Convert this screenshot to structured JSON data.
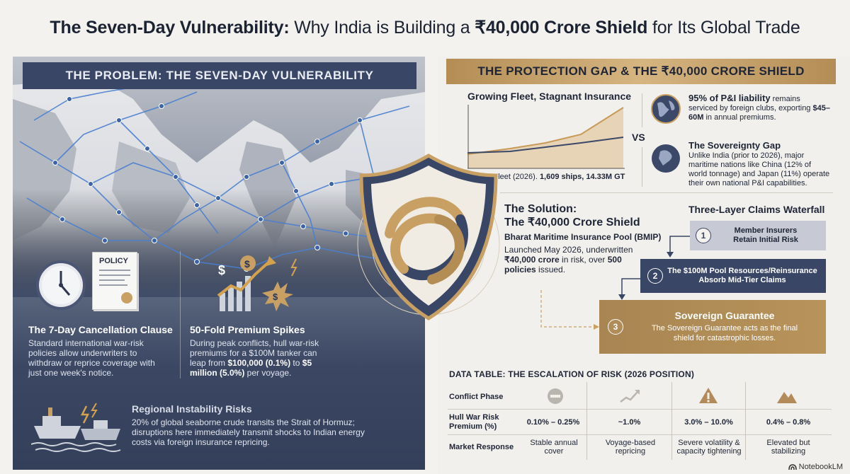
{
  "title": {
    "part1": "The Seven-Day Vulnerability:",
    "part2": " Why India is Building a ",
    "part3": "₹40,000 Crore Shield",
    "part4": " for Its Global Trade"
  },
  "left": {
    "banner": "THE PROBLEM: THE SEVEN-DAY VULNERABILITY",
    "policy_label": "POLICY",
    "clause": {
      "title": "The 7-Day Cancellation Clause",
      "text": "Standard international war-risk policies allow underwriters to withdraw or reprice coverage with just one week's notice."
    },
    "spikes": {
      "title": "50-Fold Premium Spikes",
      "text_a": "During peak conflicts, hull war-risk premiums for a $100M tanker can leap from ",
      "text_b": "$100,000 (0.1%)",
      "text_c": " to ",
      "text_d": "$5 million (5.0%)",
      "text_e": " per voyage."
    },
    "regional": {
      "title": "Regional Instability Risks",
      "text": "20% of global seaborne crude transits the Strait of Hormuz; disruptions here immediately transmit shocks to Indian energy costs via foreign insurance repricing."
    }
  },
  "right": {
    "banner": "THE PROTECTION GAP & THE ₹40,000 CRORE SHIELD",
    "fleet_title": "Growing Fleet, Stagnant Insurance",
    "fleet_caption_a": "India's Fleet (2026). ",
    "fleet_caption_b": "1,609 ships, 14.33M GT",
    "vs": "VS",
    "pi": {
      "bold": "95% of P&I liability",
      "text_a": " remains serviced by foreign clubs, exporting ",
      "text_b": "$45–60M",
      "text_c": " in annual premiums."
    },
    "sovereignty": {
      "title": "The Sovereignty Gap",
      "text": "Unlike India (prior to 2026), major maritime nations like China (12% of world tonnage) and Japan (11%) operate their own national P&I capabilities."
    },
    "solution": {
      "title1": "The Solution:",
      "title2": "The ₹40,000 Crore Shield",
      "subtitle": "Bharat Maritime Insurance Pool (BMIP)",
      "text_a": "Launched May 2026, underwritten ",
      "text_b": "₹40,000 crore",
      "text_c": " in risk, over ",
      "text_d": "500 policies",
      "text_e": " issued."
    },
    "waterfall": {
      "title": "Three-Layer Claims Waterfall",
      "steps": [
        {
          "num": "1",
          "line1": "Member Insurers",
          "line2": "Retain Initial Risk"
        },
        {
          "num": "2",
          "line1": "The $100M Pool Resources/Reinsurance",
          "line2": "Absorb Mid-Tier Claims"
        },
        {
          "num": "3",
          "title": "Sovereign Guarantee",
          "line1": "The Sovereign Guarantee acts as the final",
          "line2": "shield for catastrophic losses."
        }
      ]
    }
  },
  "table": {
    "title": "DATA TABLE: THE ESCALATION OF RISK (2026 POSITION)",
    "row_labels": [
      "Conflict Phase",
      "Hull War Risk Premium (%)",
      "Market Response"
    ],
    "premiums": [
      "0.10% – 0.25%",
      "~1.0%",
      "3.0% – 10.0%",
      "0.4% – 0.8%"
    ],
    "responses": [
      "Stable annual cover",
      "Voyage-based repricing",
      "Severe volatility & capacity tightening",
      "Elevated but stabilizing"
    ]
  },
  "brand": "NotebookLM",
  "colors": {
    "navy": "#3a4665",
    "gold": "#b8935a",
    "map_route": "#4a7fd0",
    "light_panel": "#e4e1dc"
  }
}
